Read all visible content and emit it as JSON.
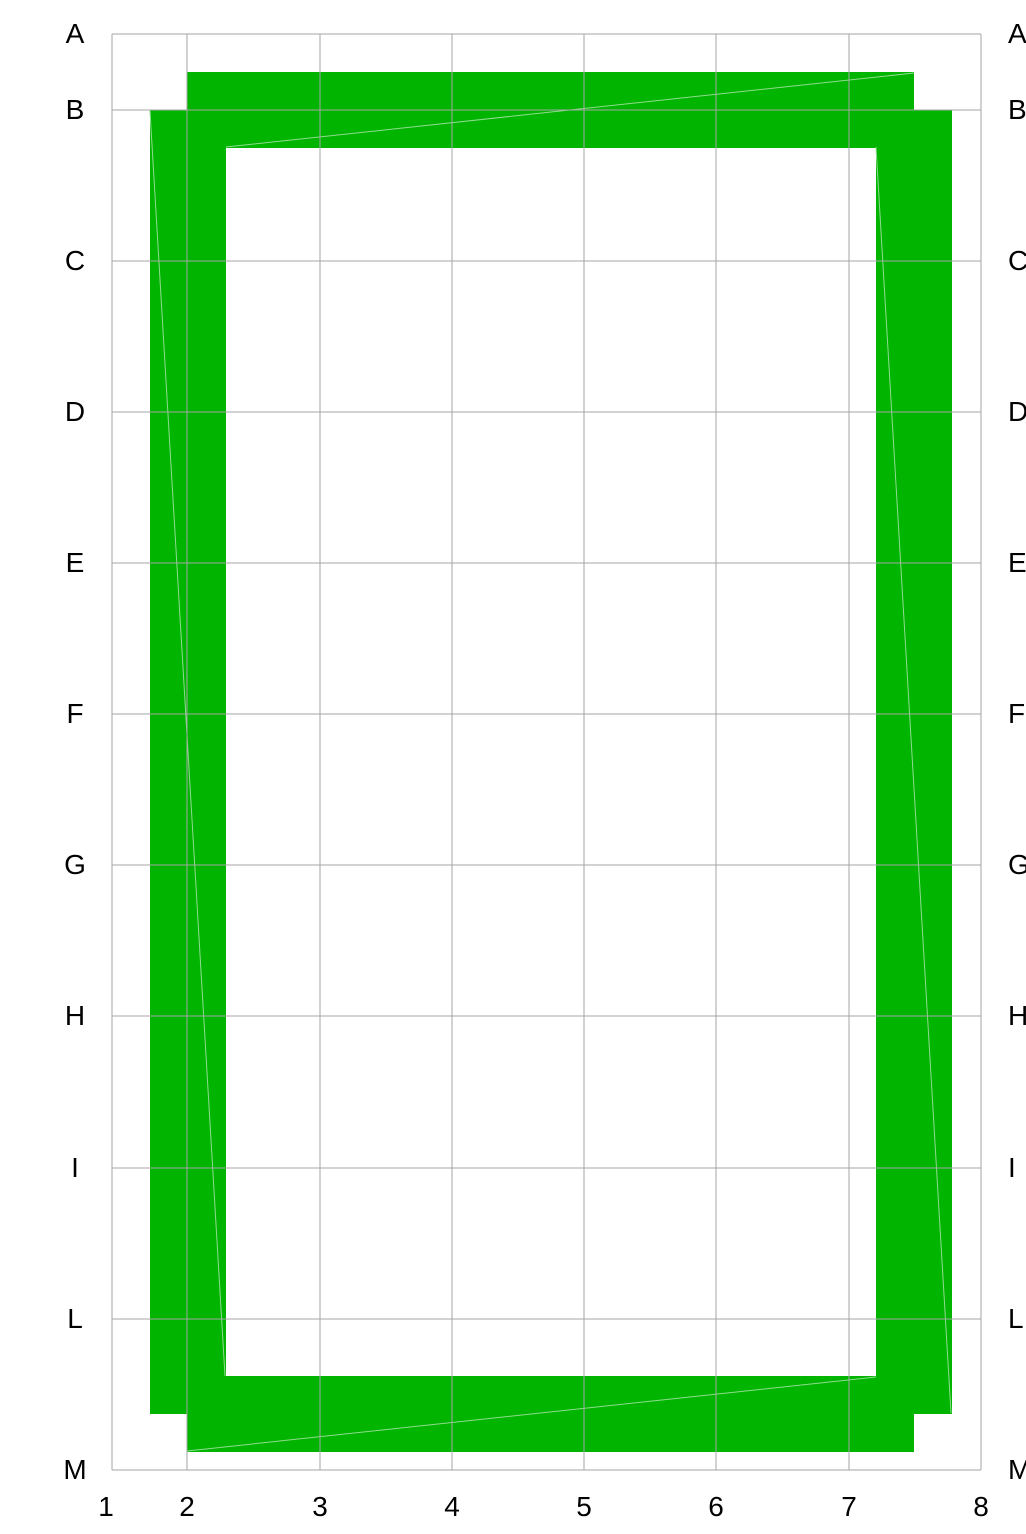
{
  "row_labels": [
    "A",
    "B",
    "C",
    "D",
    "E",
    "F",
    "G",
    "H",
    "I",
    "L",
    "M"
  ],
  "col_labels": [
    "1",
    "2",
    "3",
    "4",
    "5",
    "6",
    "7",
    "8"
  ],
  "colors": {
    "grid": "#a6a6a6",
    "frame_fill": "#00b400",
    "background": "#ffffff",
    "label": "#000000"
  },
  "frame": {
    "description_units": "grid units (columns 1–8, rows A–M)",
    "top_band": {
      "x_from": 2.0,
      "x_to": 7.5,
      "y_from": "A.25",
      "y_to": "B.25"
    },
    "bottom_band": {
      "x_from": 2.0,
      "x_to": 7.5,
      "y_from": "L.4",
      "y_to": "M"
    },
    "left_band": {
      "x_from": 1.7,
      "x_to": 2.3,
      "y_from": "B",
      "y_to": "L.6"
    },
    "right_band": {
      "x_from": 7.2,
      "x_to": 7.8,
      "y_from": "B",
      "y_to": "L.6"
    }
  }
}
